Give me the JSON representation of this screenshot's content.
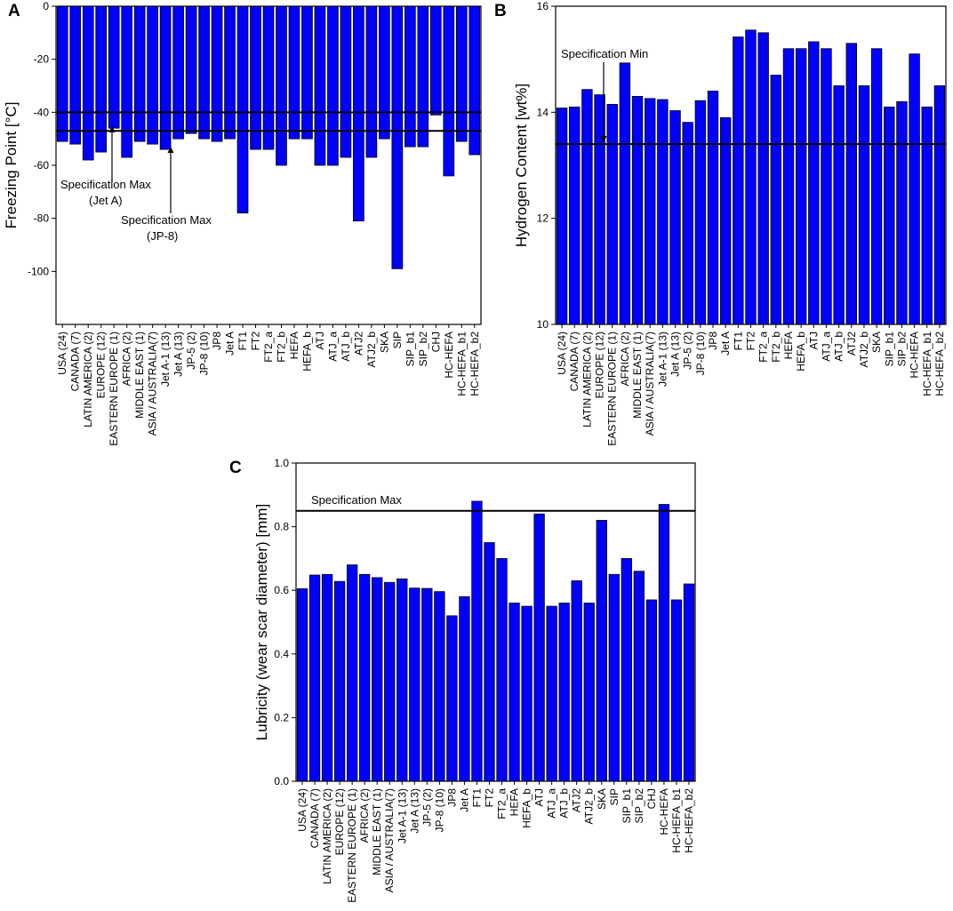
{
  "bar_color": "#0000FF",
  "chart_data": [
    {
      "panel": "A",
      "type": "bar",
      "ylabel": "Freezing Point [°C]",
      "xlabel": "",
      "ylim": [
        -120,
        0
      ],
      "yticks": [
        0,
        -20,
        -40,
        -60,
        -80,
        -100
      ],
      "categories": [
        "USA (24)",
        "CANADA (7)",
        "LATIN AMERICA (2)",
        "EUROPE (12)",
        "EASTERN EUROPE (1)",
        "AFRICA (2)",
        "MIDDLE EAST (1)",
        "ASIA / AUSTRALIA(7)",
        "Jet A-1 (13)",
        "Jet A (13)",
        "JP-5 (2)",
        "JP-8 (10)",
        "JP8",
        "Jet A",
        "FT1",
        "FT2",
        "FT2_a",
        "FT2_b",
        "HEFA",
        "HEFA_b",
        "ATJ",
        "ATJ_a",
        "ATJ_b",
        "ATJ2",
        "ATJ2_b",
        "SKA",
        "SIP",
        "SIP_b1",
        "SIP_b2",
        "CHJ",
        "HC-HEFA",
        "HC-HEFA_b1",
        "HC-HEFA_b2"
      ],
      "values": [
        -51,
        -52,
        -58,
        -55,
        -46,
        -57,
        -51,
        -52,
        -54,
        -50,
        -48,
        -50,
        -51,
        -50,
        -78,
        -54,
        -54,
        -60,
        -50,
        -50,
        -60,
        -60,
        -57,
        -81,
        -57,
        -50,
        -99,
        -53,
        -53,
        -41,
        -64,
        -51,
        -56
      ],
      "hlines": [
        {
          "value": -40,
          "label": "Specification Max",
          "sublabel": "(Jet A)"
        },
        {
          "value": -47,
          "label": "Specification Max",
          "sublabel": "(JP-8)"
        }
      ]
    },
    {
      "panel": "B",
      "type": "bar",
      "ylabel": "Hydrogen Content [wt%]",
      "xlabel": "",
      "ylim": [
        10,
        16
      ],
      "yticks": [
        10,
        12,
        14,
        16
      ],
      "categories": [
        "USA (24)",
        "CANADA (7)",
        "LATIN AMERICA (2)",
        "EUROPE (12)",
        "EASTERN EUROPE (1)",
        "AFRICA (2)",
        "MIDDLE EAST (1)",
        "ASIA / AUSTRALIA(7)",
        "Jet A-1 (13)",
        "Jet A (13)",
        "JP-5 (2)",
        "JP-8 (10)",
        "JP8",
        "Jet A",
        "FT1",
        "FT2",
        "FT2_a",
        "FT2_b",
        "HEFA",
        "HEFA_b",
        "ATJ",
        "ATJ_a",
        "ATJ_b",
        "ATJ2",
        "ATJ2_b",
        "SKA",
        "SIP_b1",
        "SIP_b2",
        "HC-HEFA",
        "HC-HEFA_b1",
        "HC-HEFA_b2"
      ],
      "values": [
        14.08,
        14.1,
        14.43,
        14.33,
        14.15,
        14.93,
        14.3,
        14.26,
        14.24,
        14.03,
        13.81,
        14.22,
        14.4,
        13.9,
        15.42,
        15.55,
        15.5,
        14.7,
        15.2,
        15.2,
        15.33,
        15.2,
        14.5,
        15.3,
        14.5,
        15.2,
        14.1,
        14.2,
        15.1,
        14.1,
        14.5
      ],
      "hlines": [
        {
          "value": 13.4,
          "label": "Specification Min",
          "sublabel": ""
        }
      ]
    },
    {
      "panel": "C",
      "type": "bar",
      "ylabel": "Lubricity (wear scar diameter) [mm]",
      "xlabel": "",
      "ylim": [
        0,
        1.0
      ],
      "yticks": [
        0.0,
        0.2,
        0.4,
        0.6,
        0.8,
        1.0
      ],
      "ytick_labels": [
        "0.0",
        "0.2",
        "0.4",
        "0.6",
        "0.8",
        "1.0"
      ],
      "categories": [
        "USA (24)",
        "CANADA (7)",
        "LATIN AMERICA (2)",
        "EUROPE (12)",
        "EASTERN EUROPE (1)",
        "AFRICA (2)",
        "MIDDLE EAST (1)",
        "ASIA / AUSTRALIA(7)",
        "Jet A-1 (13)",
        "Jet A (13)",
        "JP-5 (2)",
        "JP-8 (10)",
        "JP8",
        "Jet A",
        "FT1",
        "FT2",
        "FT2_a",
        "HEFA",
        "HEFA_b",
        "ATJ",
        "ATJ_a",
        "ATJ_b",
        "ATJ2",
        "ATJ2_b",
        "SKA",
        "SIP",
        "SIP_b1",
        "SIP_b2",
        "CHJ",
        "HC-HEFA",
        "HC-HEFA_b1",
        "HC-HEFA_b2"
      ],
      "values": [
        0.605,
        0.648,
        0.65,
        0.628,
        0.68,
        0.65,
        0.64,
        0.625,
        0.636,
        0.607,
        0.606,
        0.596,
        0.52,
        0.58,
        0.88,
        0.75,
        0.7,
        0.56,
        0.55,
        0.84,
        0.55,
        0.56,
        0.63,
        0.56,
        0.82,
        0.65,
        0.7,
        0.66,
        0.57,
        0.87,
        0.57,
        0.62
      ],
      "hlines": [
        {
          "value": 0.85,
          "label": "Specification Max",
          "sublabel": ""
        }
      ]
    }
  ]
}
